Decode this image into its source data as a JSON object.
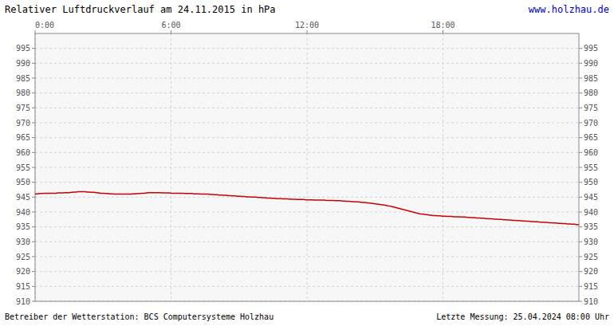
{
  "chart_data": {
    "type": "line",
    "title": "Relativer Luftdruckverlauf am 24.11.2015 in hPa",
    "annotations": [
      "www.holzhau.de",
      "Betreiber der Wetterstation: BCS Computersysteme Holzhau",
      "Letzte Messung: 25.04.2024 08:00 Uhr"
    ],
    "color": "#cc0000",
    "grid": true,
    "xlim": [
      0,
      1440
    ],
    "ylim": [
      910,
      1000
    ],
    "xticks": [
      {
        "value": 0,
        "label": "0:00"
      },
      {
        "value": 360,
        "label": "6:00"
      },
      {
        "value": 720,
        "label": "12:00"
      },
      {
        "value": 1080,
        "label": "18:00"
      }
    ],
    "yticks": [
      910,
      915,
      920,
      925,
      930,
      935,
      940,
      945,
      950,
      955,
      960,
      965,
      970,
      975,
      980,
      985,
      990,
      995
    ],
    "x": [
      0,
      6.03,
      12.05,
      18.08,
      24.1,
      30.13,
      36.15,
      42.18,
      48.2,
      54.23,
      60.25,
      66.28,
      72.3,
      78.33,
      84.35,
      90.38,
      96.4,
      102.43,
      108.45,
      114.48,
      120.5,
      126.53,
      132.55,
      138.58,
      144.6,
      150.63,
      156.65,
      162.68,
      168.7,
      174.73,
      180.75,
      186.78,
      192.8,
      198.83,
      204.85,
      210.88,
      216.9,
      222.93,
      228.95,
      234.98,
      241.0,
      247.03,
      253.05,
      259.08,
      265.1,
      271.13,
      277.15,
      283.18,
      289.21,
      295.23,
      301.26,
      307.28,
      313.31,
      319.33,
      325.36,
      331.38,
      337.41,
      343.43,
      349.46,
      355.48,
      361.51,
      367.53,
      373.56,
      379.58,
      385.61,
      391.63,
      397.66,
      403.68,
      409.71,
      415.73,
      421.76,
      427.78,
      433.81,
      439.83,
      445.86,
      451.88,
      457.91,
      463.93,
      469.96,
      475.98,
      482.01,
      488.03,
      494.06,
      500.08,
      506.11,
      512.13,
      518.16,
      524.18,
      530.21,
      536.23,
      542.26,
      548.28,
      554.31,
      560.33,
      566.36,
      572.38,
      578.41,
      584.44,
      590.46,
      596.49,
      602.51,
      608.54,
      614.56,
      620.59,
      626.61,
      632.64,
      638.66,
      644.69,
      650.71,
      656.74,
      662.76,
      668.79,
      674.81,
      680.84,
      686.86,
      692.89,
      698.91,
      704.94,
      710.96,
      716.99,
      723.01,
      729.04,
      735.06,
      741.09,
      747.11,
      753.14,
      759.16,
      765.19,
      771.21,
      777.24,
      783.26,
      789.29,
      795.31,
      801.34,
      807.36,
      813.39,
      819.41,
      825.44,
      831.46,
      837.49,
      843.51,
      849.54,
      855.56,
      861.59,
      867.62,
      873.64,
      879.67,
      885.69,
      891.72,
      897.74,
      903.77,
      909.79,
      915.82,
      921.84,
      927.87,
      933.89,
      939.92,
      945.94,
      951.97,
      957.99,
      964.02,
      970.04,
      976.07,
      982.09,
      988.12,
      994.14,
      1000.17,
      1006.19,
      1012.22,
      1018.24,
      1024.27,
      1030.29,
      1036.32,
      1042.34,
      1048.37,
      1054.39,
      1060.42,
      1066.44,
      1072.47,
      1078.49,
      1084.52,
      1090.54,
      1096.57,
      1102.59,
      1108.62,
      1114.64,
      1120.67,
      1126.69,
      1132.72,
      1138.74,
      1144.77,
      1150.79,
      1156.82,
      1162.85,
      1168.87,
      1174.9,
      1180.92,
      1186.95,
      1192.97,
      1199.0,
      1205.02,
      1211.05,
      1217.07,
      1223.1,
      1229.12,
      1235.15,
      1241.17,
      1247.2,
      1253.22,
      1259.25,
      1265.27,
      1271.3,
      1277.32,
      1283.35,
      1289.37,
      1295.4,
      1301.42,
      1307.45,
      1313.47,
      1319.5,
      1325.52,
      1331.55,
      1337.57,
      1343.6,
      1349.62,
      1355.65,
      1361.67,
      1367.7,
      1373.72,
      1379.75,
      1385.77,
      1391.8,
      1397.82,
      1403.85,
      1409.87,
      1415.9,
      1421.92,
      1427.95,
      1433.97,
      1440
    ],
    "values": [
      946.0,
      946.1,
      946.2,
      946.2,
      946.3,
      946.3,
      946.3,
      946.3,
      946.3,
      946.3,
      946.4,
      946.4,
      946.4,
      946.5,
      946.5,
      946.5,
      946.6,
      946.7,
      946.7,
      946.8,
      946.8,
      946.8,
      946.8,
      946.7,
      946.7,
      946.6,
      946.6,
      946.5,
      946.4,
      946.3,
      946.3,
      946.2,
      946.2,
      946.1,
      946.1,
      946.0,
      946.0,
      946.0,
      946.0,
      946.0,
      946.0,
      946.0,
      946.0,
      946.1,
      946.1,
      946.2,
      946.2,
      946.3,
      946.3,
      946.4,
      946.5,
      946.5,
      946.5,
      946.5,
      946.5,
      946.5,
      946.4,
      946.4,
      946.4,
      946.4,
      946.3,
      946.3,
      946.3,
      946.3,
      946.3,
      946.3,
      946.2,
      946.2,
      946.2,
      946.2,
      946.1,
      946.1,
      946.1,
      946.0,
      946.0,
      946.0,
      946.0,
      945.9,
      945.9,
      945.8,
      945.8,
      945.7,
      945.7,
      945.6,
      945.6,
      945.5,
      945.5,
      945.4,
      945.4,
      945.3,
      945.3,
      945.2,
      945.2,
      945.1,
      945.1,
      945.0,
      945.0,
      945.0,
      944.9,
      944.9,
      944.8,
      944.8,
      944.7,
      944.7,
      944.6,
      944.6,
      944.5,
      944.5,
      944.5,
      944.4,
      944.4,
      944.4,
      944.3,
      944.3,
      944.3,
      944.2,
      944.2,
      944.2,
      944.2,
      944.1,
      944.1,
      944.1,
      944.1,
      944.0,
      944.0,
      944.0,
      944.0,
      944.0,
      943.9,
      943.9,
      943.9,
      943.9,
      943.8,
      943.8,
      943.8,
      943.7,
      943.7,
      943.6,
      943.6,
      943.5,
      943.5,
      943.4,
      943.4,
      943.3,
      943.2,
      943.2,
      943.1,
      943.0,
      942.9,
      942.8,
      942.7,
      942.6,
      942.5,
      942.4,
      942.3,
      942.1,
      942.0,
      941.8,
      941.6,
      941.4,
      941.2,
      941.0,
      940.8,
      940.6,
      940.4,
      940.2,
      940.0,
      939.8,
      939.6,
      939.4,
      939.3,
      939.2,
      939.1,
      939.0,
      938.9,
      938.8,
      938.8,
      938.7,
      938.7,
      938.6,
      938.6,
      938.5,
      938.5,
      938.5,
      938.4,
      938.4,
      938.4,
      938.3,
      938.3,
      938.3,
      938.2,
      938.2,
      938.1,
      938.1,
      938.0,
      938.0,
      937.9,
      937.9,
      937.8,
      937.8,
      937.7,
      937.7,
      937.6,
      937.6,
      937.5,
      937.5,
      937.4,
      937.4,
      937.3,
      937.3,
      937.2,
      937.2,
      937.1,
      937.1,
      937.0,
      937.0,
      936.9,
      936.9,
      936.8,
      936.8,
      936.7,
      936.7,
      936.6,
      936.6,
      936.5,
      936.5,
      936.4,
      936.4,
      936.3,
      936.3,
      936.2,
      936.2,
      936.1,
      936.1,
      936.0,
      936.0,
      935.9,
      935.9,
      935.8,
      935.7
    ]
  }
}
